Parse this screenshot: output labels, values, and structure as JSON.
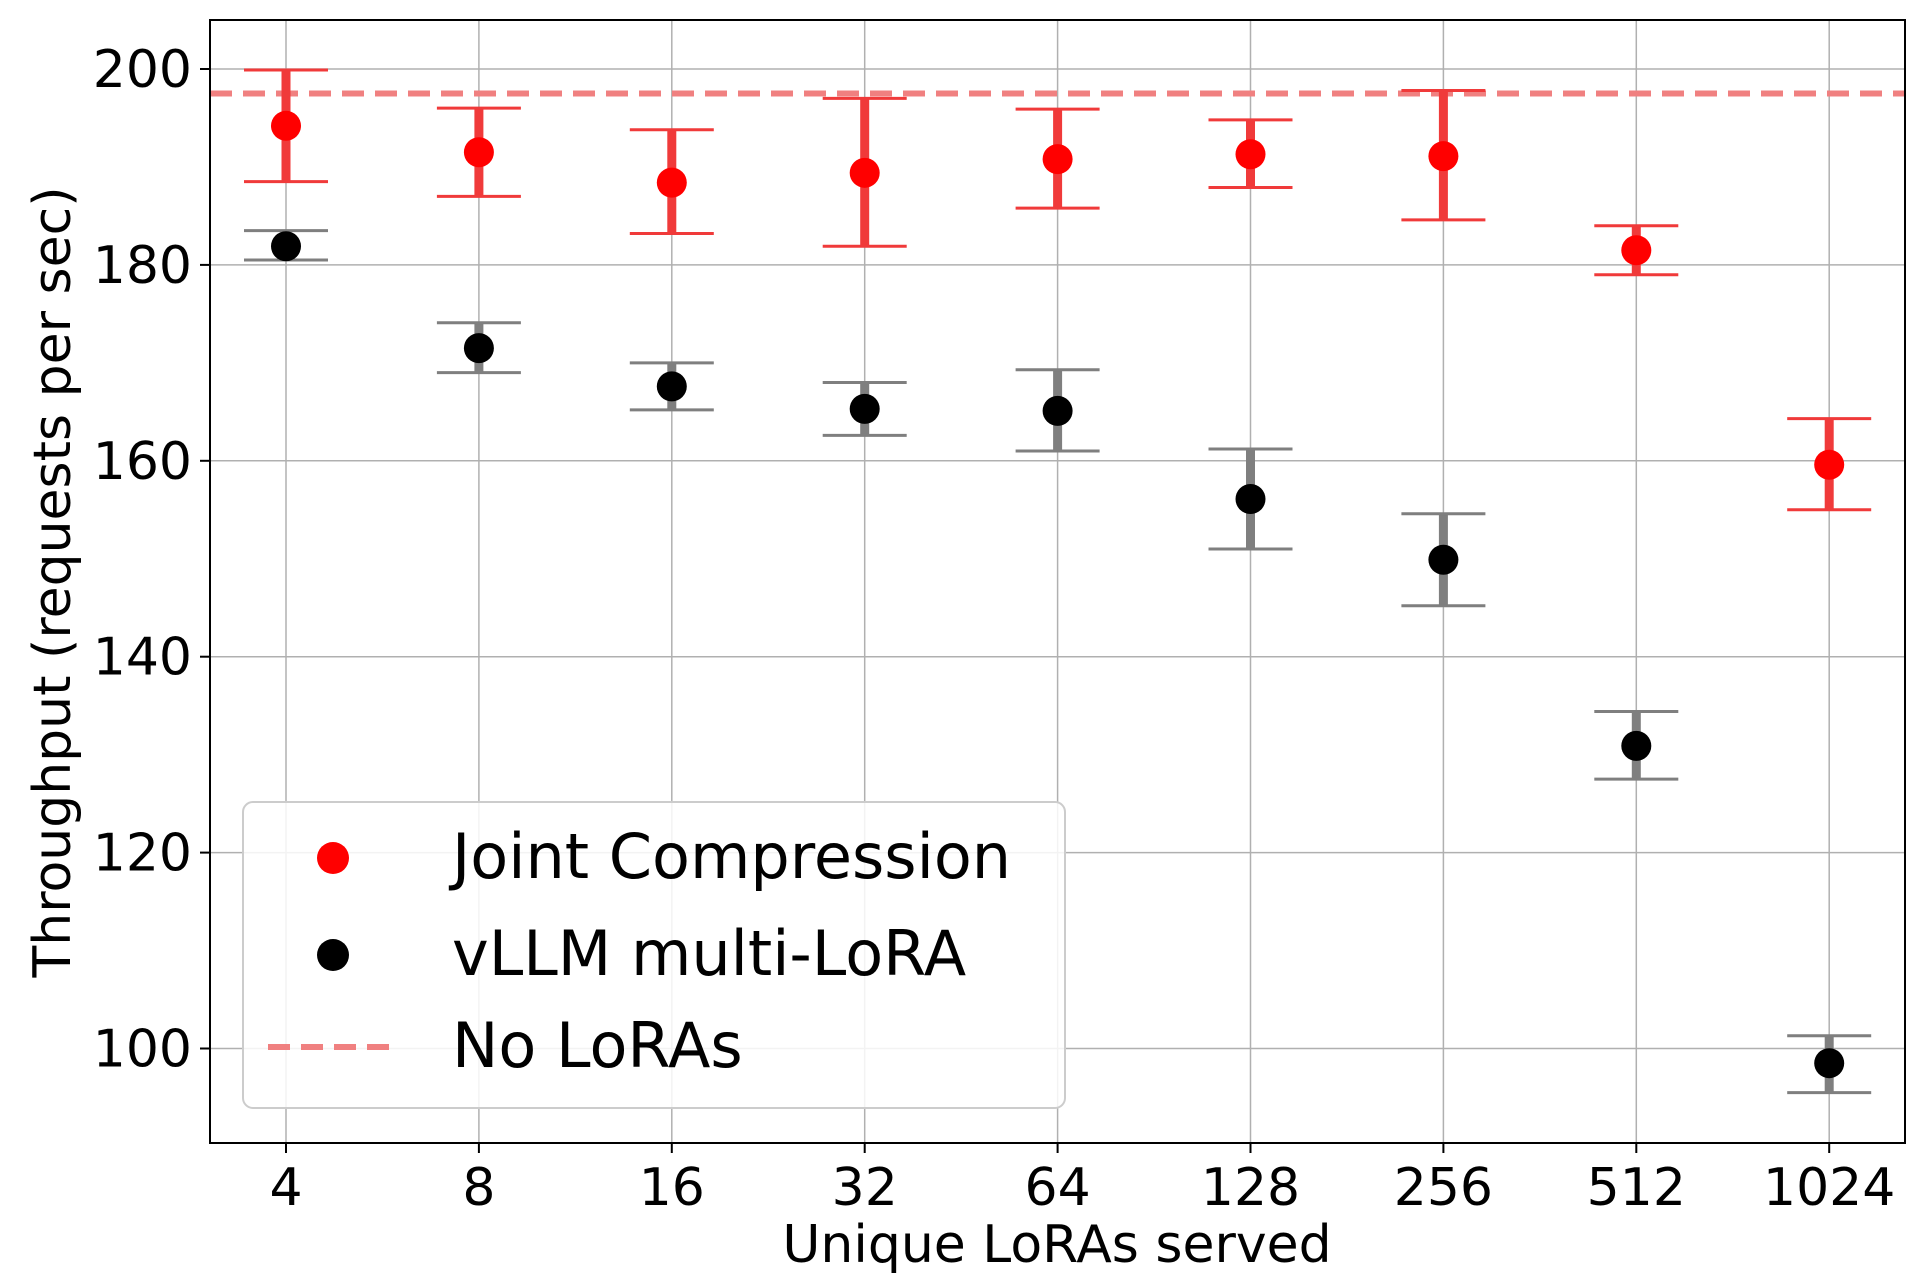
{
  "chart_data": {
    "type": "scatter",
    "title": "",
    "xlabel": "Unique LoRAs served",
    "ylabel": "Throughput (requests per sec)",
    "categories": [
      "4",
      "8",
      "16",
      "32",
      "64",
      "128",
      "256",
      "512",
      "1024"
    ],
    "ylim": [
      90,
      205
    ],
    "yticks": [
      100,
      120,
      140,
      160,
      180,
      200
    ],
    "grid": true,
    "legend_position": "bottom-left",
    "series": [
      {
        "name": "Joint Compression",
        "color": "#ff0000",
        "error_color": "#f03a3a",
        "values": [
          194.2,
          191.5,
          188.4,
          189.4,
          190.8,
          191.3,
          191.1,
          181.5,
          159.6
        ],
        "err_low": [
          188.5,
          187.0,
          183.2,
          181.9,
          185.8,
          187.9,
          184.6,
          179.0,
          155.0
        ],
        "err_high": [
          199.9,
          196.0,
          193.8,
          197.0,
          195.9,
          194.8,
          197.8,
          184.0,
          164.3
        ]
      },
      {
        "name": "vLLM multi-LoRA",
        "color": "#000000",
        "error_color": "#7f7f7f",
        "values": [
          181.9,
          171.5,
          167.6,
          165.3,
          165.1,
          156.1,
          149.9,
          130.9,
          98.5
        ],
        "err_low": [
          180.5,
          169.0,
          165.2,
          162.6,
          161.0,
          151.0,
          145.2,
          127.5,
          95.5
        ],
        "err_high": [
          183.5,
          174.1,
          170.0,
          168.0,
          169.3,
          161.2,
          154.6,
          134.4,
          101.3
        ]
      }
    ],
    "reference_line": {
      "name": "No LoRAs",
      "value": 197.5,
      "color": "#f08080",
      "style": "dashed"
    }
  }
}
